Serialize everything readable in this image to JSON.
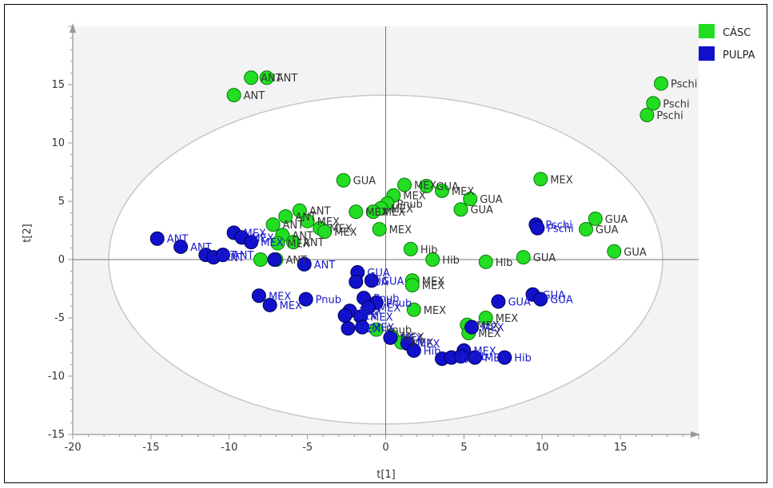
{
  "chart_data": {
    "type": "scatter",
    "xlabel": "t[1]",
    "ylabel": "t[2]",
    "xlim": [
      -20,
      20
    ],
    "ylim": [
      -15,
      20
    ],
    "xticks": [
      -20,
      -15,
      -10,
      -5,
      0,
      5,
      10,
      15
    ],
    "yticks": [
      -15,
      -10,
      -5,
      0,
      5,
      10,
      15
    ],
    "grid": false,
    "hotelling_ellipse": {
      "center": [
        0,
        0
      ],
      "rx": 17.7,
      "ry": 14.1
    },
    "legend_position": "top-right",
    "series": [
      {
        "name": "CÁSC",
        "color": "#22dd22",
        "points": [
          {
            "x": -8.6,
            "y": 15.6,
            "label": "ANT"
          },
          {
            "x": -7.6,
            "y": 15.6,
            "label": "ANT"
          },
          {
            "x": -9.7,
            "y": 14.1,
            "label": "ANT"
          },
          {
            "x": 17.6,
            "y": 15.1,
            "label": "Pschi"
          },
          {
            "x": 17.1,
            "y": 13.4,
            "label": "Pschi"
          },
          {
            "x": 16.7,
            "y": 12.4,
            "label": "Pschi"
          },
          {
            "x": -2.7,
            "y": 6.8,
            "label": "GUA"
          },
          {
            "x": 9.9,
            "y": 6.9,
            "label": "MEX"
          },
          {
            "x": 1.2,
            "y": 6.4,
            "label": "MEX"
          },
          {
            "x": 2.6,
            "y": 6.3,
            "label": "GUA"
          },
          {
            "x": 3.6,
            "y": 5.9,
            "label": "MEX"
          },
          {
            "x": 0.5,
            "y": 5.5,
            "label": "MEX"
          },
          {
            "x": 5.4,
            "y": 5.2,
            "label": "GUA"
          },
          {
            "x": 0.1,
            "y": 4.8,
            "label": "Pnub"
          },
          {
            "x": -0.3,
            "y": 4.4,
            "label": "MEX"
          },
          {
            "x": -0.8,
            "y": 4.1,
            "label": "MEX"
          },
          {
            "x": 4.8,
            "y": 4.3,
            "label": "GUA"
          },
          {
            "x": -1.9,
            "y": 4.1,
            "label": "MEX"
          },
          {
            "x": -5.5,
            "y": 4.2,
            "label": "ANT"
          },
          {
            "x": -6.4,
            "y": 3.7,
            "label": "ANT"
          },
          {
            "x": -5.0,
            "y": 3.3,
            "label": "MEX"
          },
          {
            "x": -7.2,
            "y": 3.0,
            "label": "ANT"
          },
          {
            "x": -4.2,
            "y": 2.7,
            "label": "MEX"
          },
          {
            "x": -3.9,
            "y": 2.4,
            "label": "MEX"
          },
          {
            "x": -0.4,
            "y": 2.6,
            "label": "MEX"
          },
          {
            "x": 13.4,
            "y": 3.5,
            "label": "GUA"
          },
          {
            "x": 12.8,
            "y": 2.6,
            "label": "GUA"
          },
          {
            "x": -6.6,
            "y": 2.1,
            "label": "ANT"
          },
          {
            "x": -6.9,
            "y": 1.4,
            "label": "MEX"
          },
          {
            "x": -5.9,
            "y": 1.5,
            "label": "ANT"
          },
          {
            "x": 1.6,
            "y": 0.9,
            "label": "Hib"
          },
          {
            "x": 14.6,
            "y": 0.7,
            "label": "GUA"
          },
          {
            "x": 8.8,
            "y": 0.2,
            "label": "GUA"
          },
          {
            "x": 3.0,
            "y": 0.0,
            "label": "Hib"
          },
          {
            "x": 6.4,
            "y": -0.2,
            "label": "Hib"
          },
          {
            "x": -8.0,
            "y": 0.0,
            "label": ""
          },
          {
            "x": -7.0,
            "y": 0.0,
            "label": "ANT"
          },
          {
            "x": 1.7,
            "y": -1.8,
            "label": "MEX"
          },
          {
            "x": 1.7,
            "y": -2.2,
            "label": "MEX"
          },
          {
            "x": 1.8,
            "y": -4.3,
            "label": "MEX"
          },
          {
            "x": 6.4,
            "y": -5.0,
            "label": "MEX"
          },
          {
            "x": 5.2,
            "y": -5.6,
            "label": "MEX"
          },
          {
            "x": 5.3,
            "y": -6.3,
            "label": "MEX"
          },
          {
            "x": -0.6,
            "y": -6.0,
            "label": "Pnub"
          },
          {
            "x": 0.4,
            "y": -6.6,
            "label": "MEX"
          },
          {
            "x": 1.0,
            "y": -7.1,
            "label": "MEX"
          }
        ]
      },
      {
        "name": "PULPA",
        "color": "#1111cc",
        "points": [
          {
            "x": -14.6,
            "y": 1.8,
            "label": "ANT"
          },
          {
            "x": -13.1,
            "y": 1.1,
            "label": "ANT"
          },
          {
            "x": -11.5,
            "y": 0.4,
            "label": "ANT"
          },
          {
            "x": -11.0,
            "y": 0.2,
            "label": "ANT"
          },
          {
            "x": -10.4,
            "y": 0.4,
            "label": "ANT"
          },
          {
            "x": -9.7,
            "y": 2.3,
            "label": "MEX"
          },
          {
            "x": -9.2,
            "y": 1.9,
            "label": "MEX"
          },
          {
            "x": -8.6,
            "y": 1.5,
            "label": "MEX"
          },
          {
            "x": -7.1,
            "y": 0.0,
            "label": ""
          },
          {
            "x": -5.2,
            "y": -0.4,
            "label": "ANT"
          },
          {
            "x": 9.6,
            "y": 3.0,
            "label": "Pschi"
          },
          {
            "x": 9.7,
            "y": 2.7,
            "label": "Pschi"
          },
          {
            "x": -1.8,
            "y": -1.1,
            "label": "GUA"
          },
          {
            "x": -1.9,
            "y": -1.9,
            "label": "GUA"
          },
          {
            "x": -0.9,
            "y": -1.8,
            "label": "GUA"
          },
          {
            "x": -8.1,
            "y": -3.1,
            "label": "MEX"
          },
          {
            "x": -7.4,
            "y": -3.9,
            "label": "MEX"
          },
          {
            "x": -5.1,
            "y": -3.4,
            "label": "Pnub"
          },
          {
            "x": 9.4,
            "y": -3.0,
            "label": "GUA"
          },
          {
            "x": 9.9,
            "y": -3.4,
            "label": "GUA"
          },
          {
            "x": 7.2,
            "y": -3.6,
            "label": "GUA"
          },
          {
            "x": -1.4,
            "y": -3.3,
            "label": "Pnub"
          },
          {
            "x": -0.6,
            "y": -3.7,
            "label": "Pnub"
          },
          {
            "x": -1.1,
            "y": -4.1,
            "label": "MEX"
          },
          {
            "x": -2.3,
            "y": -4.4,
            "label": "MEX"
          },
          {
            "x": -2.6,
            "y": -4.8,
            "label": "MEX"
          },
          {
            "x": -1.6,
            "y": -4.9,
            "label": "MEX"
          },
          {
            "x": -2.4,
            "y": -5.9,
            "label": "MEX"
          },
          {
            "x": -1.5,
            "y": -5.8,
            "label": "MEX"
          },
          {
            "x": 5.5,
            "y": -5.8,
            "label": "MEX"
          },
          {
            "x": 0.3,
            "y": -6.7,
            "label": "MEX"
          },
          {
            "x": 1.4,
            "y": -7.2,
            "label": "MEX"
          },
          {
            "x": 1.8,
            "y": -7.8,
            "label": "Hib"
          },
          {
            "x": 5.0,
            "y": -7.8,
            "label": "MEX"
          },
          {
            "x": 3.6,
            "y": -8.5,
            "label": "Hib"
          },
          {
            "x": 4.2,
            "y": -8.4,
            "label": "Hib"
          },
          {
            "x": 4.8,
            "y": -8.3,
            "label": "Hib"
          },
          {
            "x": 5.7,
            "y": -8.4,
            "label": "MEX"
          },
          {
            "x": 7.6,
            "y": -8.4,
            "label": "Hib"
          }
        ]
      }
    ]
  }
}
